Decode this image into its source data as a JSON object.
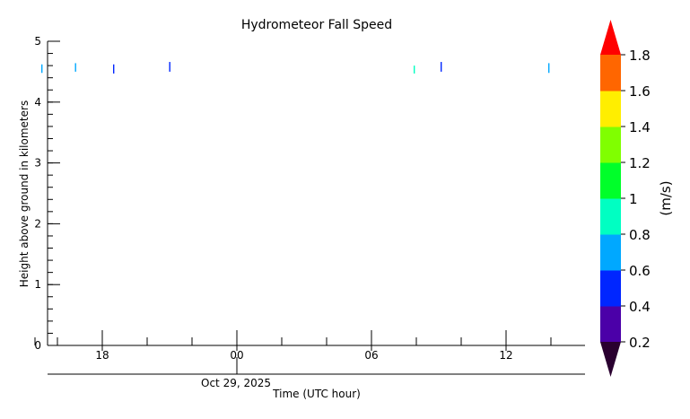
{
  "chart_data": {
    "type": "heatmap",
    "title": "Hydrometeor Fall Speed",
    "xlabel": "Time (UTC hour)",
    "ylabel": "Height above ground in kilometers",
    "date_label": "Oct 29, 2025",
    "x_range_hours": [
      14.5,
      38.5
    ],
    "ylim": [
      0,
      5
    ],
    "y_ticks": [
      0,
      1,
      2,
      3,
      4,
      5
    ],
    "y_minor_step": 0.2,
    "x_major_ticks": [
      {
        "hour": 18,
        "label": "18"
      },
      {
        "hour": 24,
        "label": "00"
      },
      {
        "hour": 30,
        "label": "06"
      },
      {
        "hour": 36,
        "label": "12"
      }
    ],
    "x_minor_ticks_hours": [
      15,
      16,
      20,
      22,
      26,
      28,
      32,
      34,
      38
    ],
    "date_tick_hour": 24,
    "colorbar": {
      "label": "(m/s)",
      "levels": [
        0.2,
        0.4,
        0.6,
        0.8,
        1.0,
        1.2,
        1.4,
        1.6,
        1.8
      ],
      "tick_labels": [
        "0.2",
        "0.4",
        "0.6",
        "0.8",
        "1",
        "1.2",
        "1.4",
        "1.6",
        "1.8"
      ],
      "colors": [
        "#4b00a8",
        "#0026ff",
        "#00a8ff",
        "#00ffc2",
        "#00ff2a",
        "#80ff00",
        "#ffee00",
        "#ff6600"
      ],
      "under_color": "#2a0030",
      "over_color": "#ff0000"
    },
    "points": [
      {
        "hour": 15.3,
        "y0": 4.48,
        "y1": 4.62,
        "color": "#00a8ff"
      },
      {
        "hour": 16.8,
        "y0": 4.5,
        "y1": 4.64,
        "color": "#00a8ff"
      },
      {
        "hour": 18.5,
        "y0": 4.47,
        "y1": 4.62,
        "color": "#0026ff"
      },
      {
        "hour": 21.0,
        "y0": 4.5,
        "y1": 4.66,
        "color": "#0026ff"
      },
      {
        "hour": 31.9,
        "y0": 4.47,
        "y1": 4.6,
        "color": "#00ffc2"
      },
      {
        "hour": 33.1,
        "y0": 4.5,
        "y1": 4.66,
        "color": "#0026ff"
      },
      {
        "hour": 37.9,
        "y0": 4.48,
        "y1": 4.64,
        "color": "#00a8ff"
      }
    ]
  }
}
